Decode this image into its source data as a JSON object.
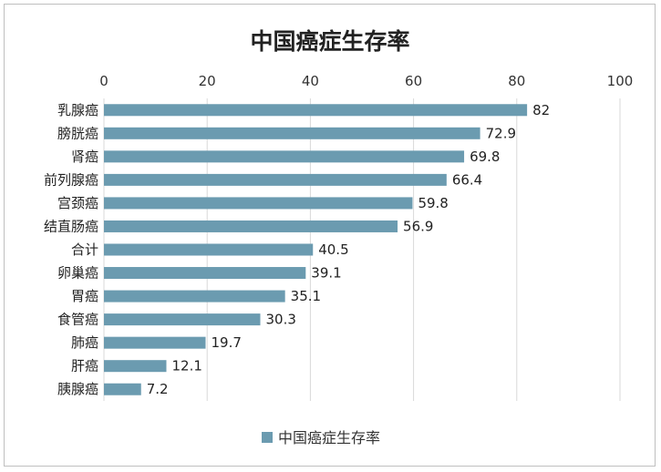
{
  "chart_data": {
    "type": "bar",
    "orientation": "horizontal",
    "title": "中国癌症生存率",
    "categories": [
      "乳腺癌",
      "膀胱癌",
      "肾癌",
      "前列腺癌",
      "宫颈癌",
      "结直肠癌",
      "合计",
      "卵巢癌",
      "胃癌",
      "食管癌",
      "肺癌",
      "肝癌",
      "胰腺癌"
    ],
    "series": [
      {
        "name": "中国癌症生存率",
        "values": [
          82,
          72.9,
          69.8,
          66.4,
          59.8,
          56.9,
          40.5,
          39.1,
          35.1,
          30.3,
          19.7,
          12.1,
          7.2
        ],
        "color": "#6b9bb0"
      }
    ],
    "xlim": [
      0,
      100
    ],
    "xticks": [
      0,
      20,
      40,
      60,
      80,
      100
    ],
    "axis_position": "top",
    "grid": true,
    "legend": "bottom"
  }
}
